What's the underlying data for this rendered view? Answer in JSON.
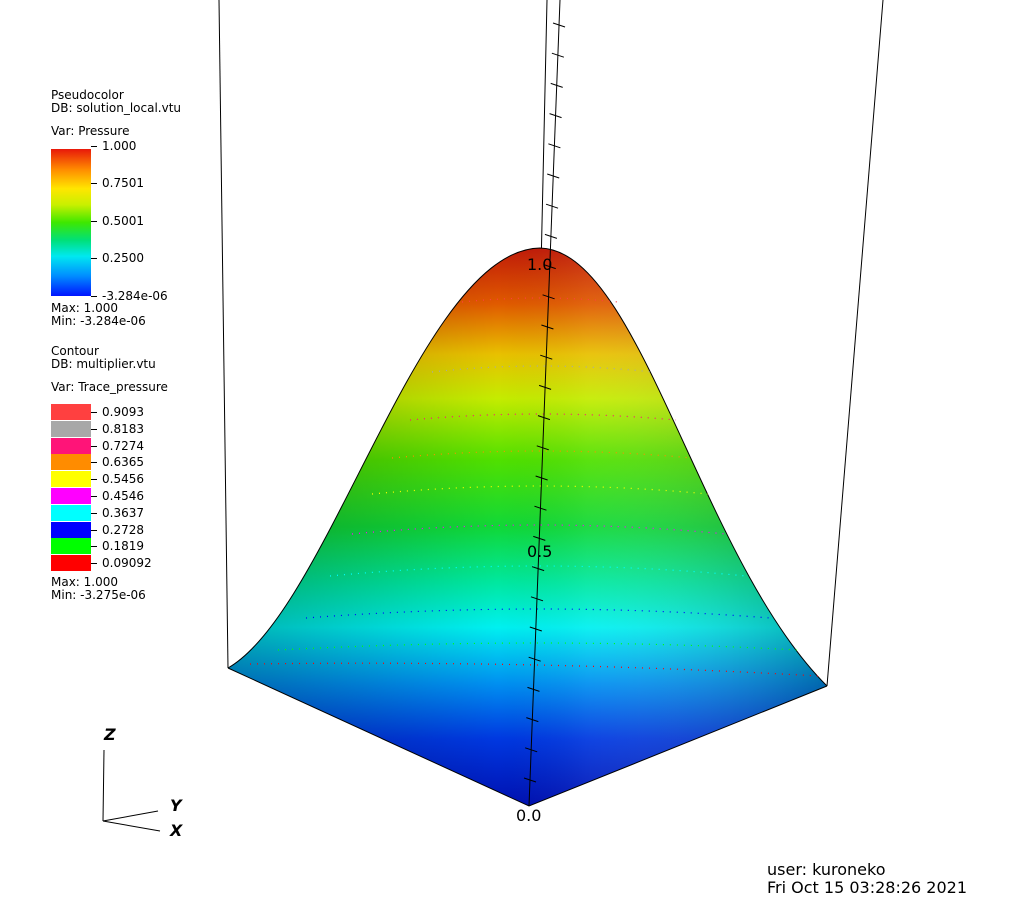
{
  "pseudocolor": {
    "plot_type": "Pseudocolor",
    "db": "DB: solution_local.vtu",
    "var": "Var: Pressure",
    "ticks": [
      "1.000",
      "0.7501",
      "0.5001",
      "0.2500",
      "-3.284e-06"
    ],
    "max": "Max:  1.000",
    "min": "Min: -3.284e-06"
  },
  "contour": {
    "plot_type": "Contour",
    "db": "DB: multiplier.vtu",
    "var": "Var: Trace_pressure",
    "levels": [
      {
        "label": "0.9093",
        "color": "#ff4040"
      },
      {
        "label": "0.8183",
        "color": "#a8a8a8"
      },
      {
        "label": "0.7274",
        "color": "#ff1478"
      },
      {
        "label": "0.6365",
        "color": "#ff8c00"
      },
      {
        "label": "0.5456",
        "color": "#ffff00"
      },
      {
        "label": "0.4546",
        "color": "#ff00ff"
      },
      {
        "label": "0.3637",
        "color": "#00ffff"
      },
      {
        "label": "0.2728",
        "color": "#0000ff"
      },
      {
        "label": "0.1819",
        "color": "#00ff00"
      },
      {
        "label": "0.09092",
        "color": "#ff0000"
      }
    ],
    "max": "Max:  1.000",
    "min": "Min: -3.275e-06"
  },
  "axis": {
    "labels": [
      "1.0",
      "0.5",
      "0.0"
    ],
    "triad": {
      "z": "Z",
      "y": "Y",
      "x": "X"
    }
  },
  "footer": {
    "user": "user: kuroneko",
    "timestamp": "Fri Oct 15 03:28:26 2021"
  }
}
